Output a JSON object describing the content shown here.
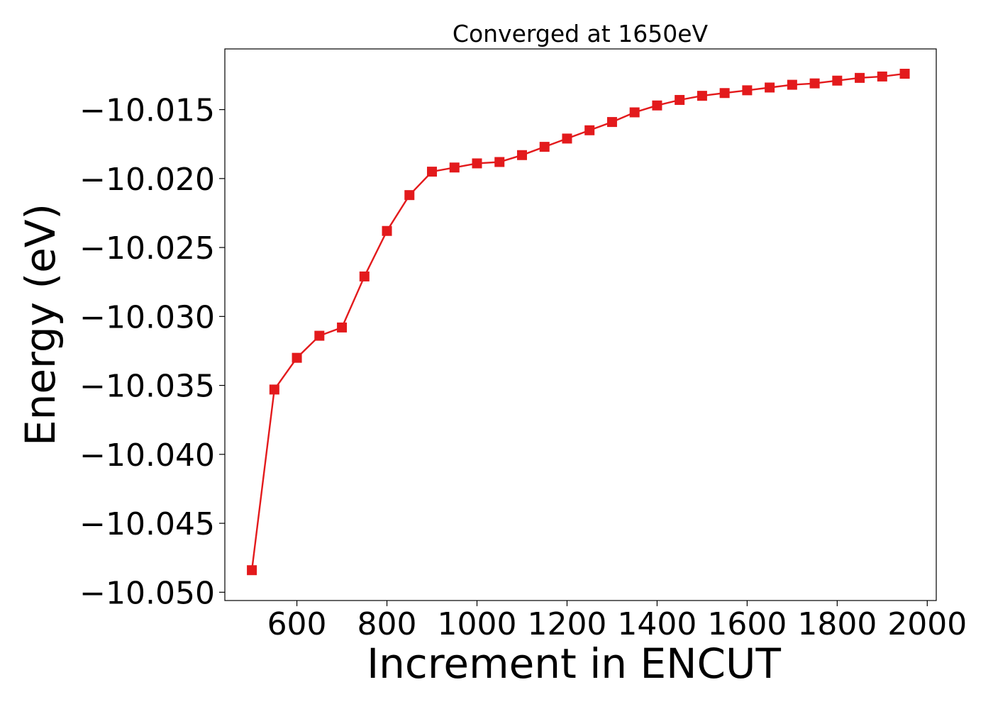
{
  "chart_data": {
    "type": "line",
    "title": "Converged at 1650eV",
    "xlabel": "Increment in ENCUT",
    "ylabel": "Energy (eV)",
    "xlim": [
      440,
      2020
    ],
    "ylim": [
      -10.0506,
      -10.0106
    ],
    "x_ticks": [
      600,
      800,
      1000,
      1200,
      1400,
      1600,
      1800,
      2000
    ],
    "x_tick_labels": [
      "600",
      "800",
      "1000",
      "1200",
      "1400",
      "1600",
      "1800",
      "2000"
    ],
    "y_ticks": [
      -10.015,
      -10.02,
      -10.025,
      -10.03,
      -10.035,
      -10.04,
      -10.045,
      -10.05
    ],
    "y_tick_labels": [
      "−10.015",
      "−10.020",
      "−10.025",
      "−10.030",
      "−10.035",
      "−10.040",
      "−10.045",
      "−10.050"
    ],
    "grid": false,
    "marker": "square",
    "color": "#e31a1c",
    "series": [
      {
        "x": [
          500,
          550,
          600,
          650,
          700,
          750,
          800,
          850,
          900,
          950,
          1000,
          1050,
          1100,
          1150,
          1200,
          1250,
          1300,
          1350,
          1400,
          1450,
          1500,
          1550,
          1600,
          1650,
          1700,
          1750,
          1800,
          1850,
          1900,
          1950
        ],
        "y": [
          -10.0484,
          -10.0353,
          -10.033,
          -10.0314,
          -10.0308,
          -10.0271,
          -10.0238,
          -10.0212,
          -10.0195,
          -10.0192,
          -10.0189,
          -10.0188,
          -10.0183,
          -10.0177,
          -10.0171,
          -10.0165,
          -10.0159,
          -10.0152,
          -10.0147,
          -10.0143,
          -10.014,
          -10.0138,
          -10.0136,
          -10.0134,
          -10.0132,
          -10.0131,
          -10.0129,
          -10.0127,
          -10.0126,
          -10.0124
        ]
      }
    ]
  }
}
